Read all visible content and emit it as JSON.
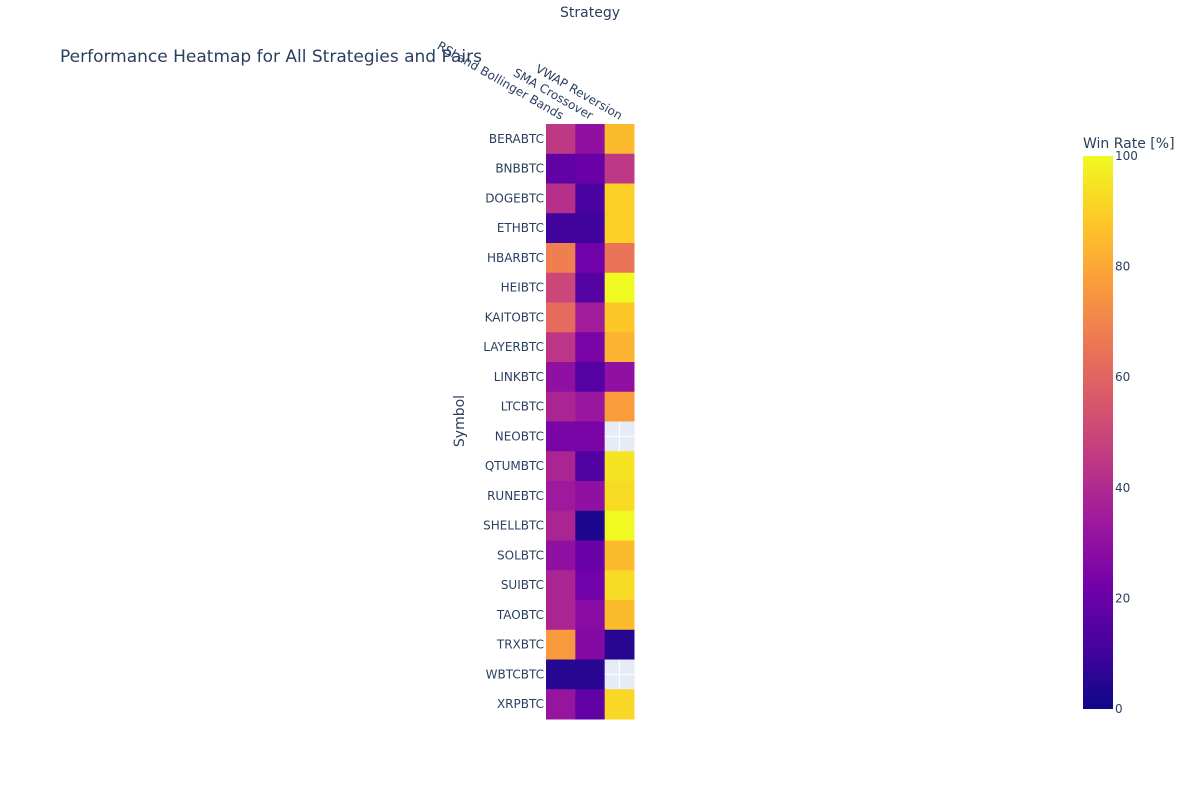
{
  "chart_data": {
    "type": "heatmap",
    "title": "Performance Heatmap for All Strategies and Pairs",
    "xlabel": "Strategy",
    "ylabel": "Symbol",
    "x_categories": [
      "RSI and Bollinger Bands",
      "SMA Crossover",
      "VWAP Reversion"
    ],
    "y_categories": [
      "BERABTC",
      "BNBBTC",
      "DOGEBTC",
      "ETHBTC",
      "HBARBTC",
      "HEIBTC",
      "KAITOBTC",
      "LAYERBTC",
      "LINKBTC",
      "LTCBTC",
      "NEOBTC",
      "QTUMBTC",
      "RUNEBTC",
      "SHELLBTC",
      "SOLBTC",
      "SUIBTC",
      "TAOBTC",
      "TRXBTC",
      "WBTCBTC",
      "XRPBTC"
    ],
    "values": [
      [
        45,
        30,
        85
      ],
      [
        18,
        20,
        45
      ],
      [
        42,
        12,
        90
      ],
      [
        10,
        10,
        90
      ],
      [
        68,
        22,
        65
      ],
      [
        50,
        15,
        100
      ],
      [
        62,
        35,
        88
      ],
      [
        44,
        24,
        83
      ],
      [
        30,
        15,
        30
      ],
      [
        38,
        33,
        77
      ],
      [
        24,
        24,
        null
      ],
      [
        38,
        14,
        95
      ],
      [
        34,
        30,
        93
      ],
      [
        38,
        3,
        100
      ],
      [
        30,
        20,
        85
      ],
      [
        38,
        22,
        93
      ],
      [
        38,
        28,
        85
      ],
      [
        76,
        27,
        5
      ],
      [
        5,
        5,
        null
      ],
      [
        32,
        18,
        92
      ]
    ],
    "missing_color": "#e5ecf6",
    "colorbar": {
      "title": "Win Rate [%]",
      "range": [
        0,
        100
      ],
      "ticks": [
        "0",
        "20",
        "40",
        "60",
        "80",
        "100"
      ],
      "colorscale": [
        "#0d0887",
        "#46039f",
        "#7201a8",
        "#9c179e",
        "#bd3786",
        "#d8576b",
        "#ed7953",
        "#fb9f3a",
        "#fdca26",
        "#f0f921"
      ]
    },
    "xaxis_side": "top",
    "grid": false,
    "legend": "colorbar-right"
  },
  "colors": {
    "text": "#2a3f5f",
    "background": "#ffffff"
  }
}
